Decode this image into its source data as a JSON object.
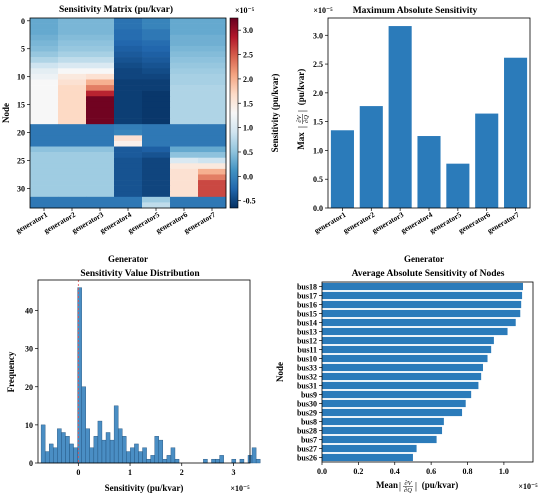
{
  "chart_data": [
    {
      "id": "heatmap",
      "type": "heatmap",
      "title": "Sensitivity Matrix (pu/kvar)",
      "xlabel": "Generator",
      "ylabel": "Node",
      "colorbar_label": "Sensitivity (pu/kvar)",
      "multiplier": "×10⁻⁵",
      "x_categories": [
        "generator1",
        "generator2",
        "generator3",
        "generator4",
        "generator5",
        "generator6",
        "generator7"
      ],
      "y_ticks": [
        "0",
        "5",
        "10",
        "15",
        "20",
        "25",
        "30"
      ],
      "colorbar_ticks": [
        "-0.5",
        "0.0",
        "0.5",
        "1.0",
        "1.5",
        "2.0",
        "2.5",
        "3.0"
      ],
      "vmin": -0.65,
      "vmax": 3.25,
      "rows": 34,
      "values": [
        [
          0.3,
          0.4,
          0.4,
          -0.15,
          0.0,
          0.3,
          0.3
        ],
        [
          0.3,
          0.4,
          0.4,
          -0.15,
          0.0,
          0.3,
          0.3
        ],
        [
          0.3,
          0.4,
          0.4,
          -0.2,
          -0.1,
          0.3,
          0.3
        ],
        [
          0.35,
          0.45,
          0.45,
          -0.2,
          -0.1,
          0.35,
          0.35
        ],
        [
          0.4,
          0.5,
          0.5,
          -0.25,
          -0.2,
          0.35,
          0.35
        ],
        [
          0.45,
          0.55,
          0.55,
          -0.3,
          -0.25,
          0.4,
          0.4
        ],
        [
          0.55,
          0.65,
          0.65,
          -0.35,
          -0.3,
          0.45,
          0.45
        ],
        [
          0.7,
          0.8,
          0.8,
          -0.4,
          -0.35,
          0.5,
          0.5
        ],
        [
          0.9,
          1.0,
          1.0,
          -0.45,
          -0.4,
          0.55,
          0.55
        ],
        [
          1.1,
          1.3,
          1.3,
          -0.5,
          -0.45,
          0.6,
          0.6
        ],
        [
          1.2,
          1.5,
          1.6,
          -0.5,
          -0.5,
          0.65,
          0.65
        ],
        [
          1.3,
          1.6,
          2.0,
          -0.55,
          -0.55,
          0.65,
          0.65
        ],
        [
          1.3,
          1.7,
          2.3,
          -0.55,
          -0.55,
          0.7,
          0.7
        ],
        [
          1.3,
          1.7,
          2.8,
          -0.55,
          -0.6,
          0.7,
          0.7
        ],
        [
          1.3,
          1.7,
          3.2,
          -0.55,
          -0.6,
          0.7,
          0.7
        ],
        [
          1.3,
          1.7,
          3.2,
          -0.55,
          -0.6,
          0.7,
          0.7
        ],
        [
          1.3,
          1.7,
          3.2,
          -0.55,
          -0.6,
          0.7,
          0.7
        ],
        [
          1.3,
          1.7,
          3.2,
          -0.55,
          -0.6,
          0.7,
          0.7
        ],
        [
          1.3,
          1.7,
          3.2,
          -0.55,
          -0.6,
          0.7,
          0.7
        ],
        [
          -0.1,
          -0.1,
          -0.1,
          -0.05,
          -0.1,
          -0.1,
          -0.1
        ],
        [
          -0.1,
          -0.1,
          -0.1,
          0.0,
          -0.1,
          -0.1,
          -0.1
        ],
        [
          -0.1,
          -0.1,
          -0.1,
          1.6,
          -0.1,
          -0.1,
          -0.1
        ],
        [
          -0.1,
          -0.1,
          -0.1,
          1.4,
          -0.1,
          -0.1,
          -0.1
        ],
        [
          0.5,
          0.5,
          0.5,
          -0.35,
          -0.3,
          0.3,
          0.3
        ],
        [
          0.6,
          0.6,
          0.6,
          -0.35,
          -0.4,
          0.5,
          0.5
        ],
        [
          0.6,
          0.6,
          0.6,
          -0.4,
          -0.5,
          1.0,
          0.9
        ],
        [
          0.6,
          0.6,
          0.6,
          -0.4,
          -0.5,
          1.5,
          1.5
        ],
        [
          0.6,
          0.6,
          0.6,
          -0.4,
          -0.5,
          1.6,
          2.0
        ],
        [
          0.6,
          0.6,
          0.6,
          -0.4,
          -0.5,
          1.6,
          2.3
        ],
        [
          0.6,
          0.6,
          0.6,
          -0.4,
          -0.5,
          1.6,
          2.6
        ],
        [
          0.6,
          0.6,
          0.6,
          -0.4,
          -0.5,
          1.6,
          2.6
        ],
        [
          0.6,
          0.6,
          0.6,
          -0.4,
          -0.5,
          1.6,
          2.6
        ],
        [
          -0.1,
          -0.1,
          -0.1,
          -0.1,
          0.6,
          -0.1,
          -0.1
        ],
        [
          -0.1,
          -0.1,
          -0.1,
          -0.1,
          0.8,
          -0.1,
          -0.1
        ]
      ]
    },
    {
      "id": "maxbar",
      "type": "bar",
      "title": "Maximum Absolute Sensitivity",
      "xlabel": "Generator",
      "ylabel_prefix": "Max",
      "ylabel_frac_num": "∂V",
      "ylabel_frac_den": "∂Q",
      "ylabel_suffix": "(pu/kvar)",
      "multiplier": "×10⁻⁵",
      "categories": [
        "generator1",
        "generator2",
        "generator3",
        "generator4",
        "generator5",
        "generator6",
        "generator7"
      ],
      "values": [
        1.35,
        1.77,
        3.16,
        1.25,
        0.77,
        1.64,
        2.61
      ],
      "ylim": [
        0,
        3.3
      ],
      "y_ticks": [
        "0.0",
        "0.5",
        "1.0",
        "1.5",
        "2.0",
        "2.5",
        "3.0"
      ],
      "color": "#2b7bba"
    },
    {
      "id": "hist",
      "type": "bar",
      "title": "Sensitivity Value Distribution",
      "xlabel": "Sensitivity (pu/kvar)",
      "ylabel": "Frequency",
      "multiplier": "×10⁻⁵",
      "x_ticks": [
        "0",
        "1",
        "2",
        "3"
      ],
      "y_ticks": [
        "0",
        "10",
        "20",
        "30",
        "40"
      ],
      "xlim": [
        -0.78,
        3.32
      ],
      "ylim": [
        0,
        48
      ],
      "bin_start": -0.72,
      "bin_width": 0.07846,
      "values": [
        10,
        3,
        5,
        4,
        9,
        8,
        7,
        5,
        4,
        46,
        20,
        9,
        4,
        7,
        11,
        6,
        8,
        6,
        15,
        9,
        7,
        3,
        4,
        5,
        3,
        4,
        1,
        2,
        7,
        6,
        1,
        2,
        4,
        1,
        0,
        0,
        0,
        0,
        0,
        0,
        1,
        0,
        1,
        1,
        2,
        0,
        0,
        1,
        0,
        1,
        0,
        2,
        4,
        1
      ],
      "ref_line_x": 0,
      "color": "#4a8ec4"
    },
    {
      "id": "avgbar",
      "type": "bar",
      "orientation": "horizontal",
      "title": "Average Absolute Sensitivity of Nodes",
      "xlabel_prefix": "Mean",
      "xlabel_frac_num": "∂V",
      "xlabel_frac_den": "∂Q",
      "xlabel_suffix": "(pu/kvar)",
      "ylabel": "Node",
      "multiplier": "×10⁻⁵",
      "categories": [
        "bus18",
        "bus17",
        "bus16",
        "bus15",
        "bus14",
        "bus13",
        "bus12",
        "bus11",
        "bus10",
        "bus33",
        "bus32",
        "bus31",
        "bus9",
        "bus30",
        "bus29",
        "bus8",
        "bus28",
        "bus7",
        "bus27",
        "bus26"
      ],
      "values": [
        1.105,
        1.1,
        1.095,
        1.09,
        1.065,
        1.02,
        0.945,
        0.93,
        0.91,
        0.885,
        0.875,
        0.86,
        0.82,
        0.79,
        0.77,
        0.67,
        0.66,
        0.63,
        0.52,
        0.5
      ],
      "xlim": [
        0,
        1.16
      ],
      "x_ticks": [
        "0.0",
        "0.2",
        "0.4",
        "0.6",
        "0.8",
        "1.0"
      ],
      "color": "#2b7bba"
    }
  ]
}
